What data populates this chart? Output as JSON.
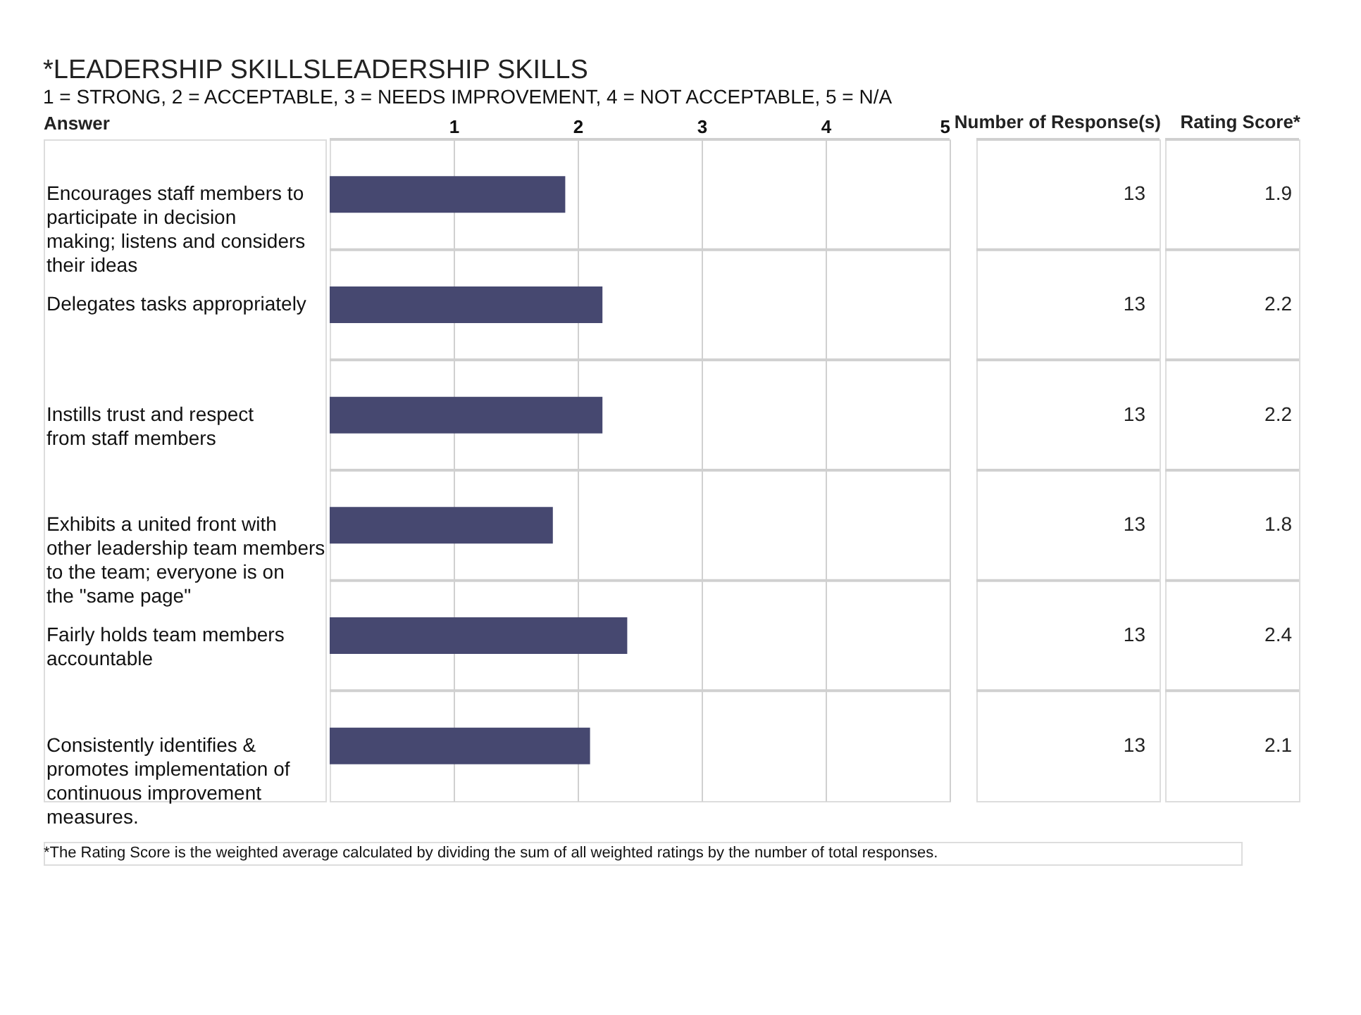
{
  "chart_data": {
    "type": "bar",
    "orientation": "horizontal",
    "title": "*LEADERSHIP SKILLSLEADERSHIP SKILLS",
    "subtitle": "1 = STRONG, 2 = ACCEPTABLE, 3 = NEEDS IMPROVEMENT, 4 = NOT ACCEPTABLE, 5 = N/A",
    "ylabel": "Answer",
    "categories": [
      "Encourages staff members to participate in decision making; listens and considers their ideas",
      "Delegates tasks appropriately",
      "Instills trust and respect from staff members",
      "Exhibits a united front with other leadership team members to the team; everyone is on the \"same page\"",
      "Fairly holds team members accountable",
      "Consistently identifies & promotes implementation of continuous improvement measures."
    ],
    "values": [
      1.9,
      2.2,
      2.2,
      1.8,
      2.4,
      2.1
    ],
    "color": "#464870",
    "data_labels": true,
    "xlim": [
      0,
      5
    ],
    "xticks": [
      1,
      2,
      3,
      4,
      5
    ],
    "grid": "x",
    "annotations": [
      "Number of Response(s)",
      "Rating Score*",
      "*The Rating Score is the weighted average calculated by dividing the sum of all weighted ratings by the number of total responses.",
      "13",
      "13",
      "13",
      "13",
      "13",
      "13"
    ]
  }
}
